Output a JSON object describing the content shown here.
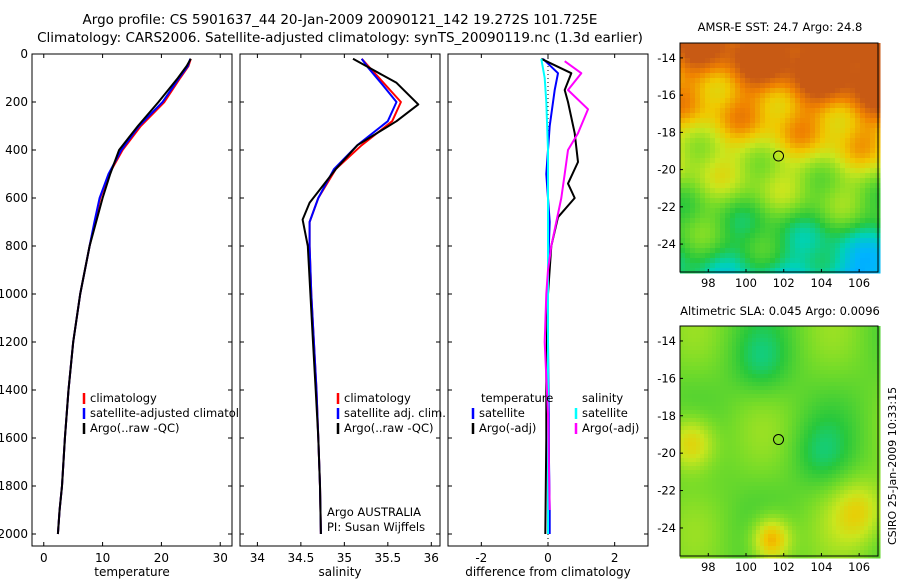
{
  "titles": {
    "line1": "Argo profile: CS 5901637_44 20-Jan-2009 20090121_142 19.272S 101.725E",
    "line2": "Climatology: CARS2006. Satellite-adjusted climatology: synTS_20090119.nc (1.3d earlier)"
  },
  "colors": {
    "climatology": "#ff0000",
    "satellite": "#0000ff",
    "argo": "#000000",
    "temp_satellite": "#0000ff",
    "sal_satellite": "#00ffff",
    "sal_argo": "#ff00ff"
  },
  "chart_data": [
    {
      "type": "line",
      "id": "temperature",
      "xlabel": "temperature",
      "ylabel": "",
      "xlim": [
        -2,
        32
      ],
      "ylim": [
        2050,
        0
      ],
      "xticks": [
        0,
        10,
        20,
        30
      ],
      "yticks": [
        0,
        200,
        400,
        600,
        800,
        1000,
        1200,
        1400,
        1600,
        1800,
        2000
      ],
      "ytick_labels": [
        "0",
        "200",
        "400",
        "600",
        "800",
        "1000",
        "1200",
        "1400",
        "1600",
        "1800",
        "2000"
      ],
      "legend": {
        "placement": "lower-right",
        "entries": [
          "climatology",
          "satellite-adjusted climatology",
          "Argo(..raw -QC)"
        ]
      },
      "series": [
        {
          "name": "climatology",
          "color_key": "climatology",
          "x": [
            25,
            24.6,
            23.2,
            20.5,
            16.5,
            13.4,
            11.1,
            9.6,
            8.7,
            7.8,
            6.2,
            5.0,
            4.2,
            3.6,
            3.1,
            2.7,
            2.4
          ],
          "y": [
            20,
            50,
            100,
            200,
            300,
            400,
            500,
            600,
            700,
            800,
            1000,
            1200,
            1400,
            1600,
            1800,
            1900,
            2000
          ]
        },
        {
          "name": "satellite-adjusted climatology",
          "color_key": "satellite",
          "x": [
            24.9,
            24.5,
            23.0,
            20.2,
            16.2,
            13.2,
            11.0,
            9.5,
            8.6,
            7.8,
            6.2,
            5.0,
            4.2,
            3.6,
            3.1,
            2.7,
            2.4
          ],
          "y": [
            20,
            50,
            100,
            200,
            300,
            400,
            500,
            600,
            700,
            800,
            1000,
            1200,
            1400,
            1600,
            1800,
            1900,
            2000
          ]
        },
        {
          "name": "Argo(..raw -QC)",
          "color_key": "argo",
          "x": [
            25,
            24.3,
            22.8,
            19.5,
            16.0,
            12.8,
            11.3,
            10.0,
            8.9,
            7.8,
            6.2,
            5.0,
            4.2,
            3.6,
            3.1,
            2.7,
            2.4
          ],
          "y": [
            20,
            50,
            100,
            200,
            300,
            400,
            500,
            600,
            700,
            800,
            1000,
            1200,
            1400,
            1600,
            1800,
            1900,
            2000
          ]
        }
      ]
    },
    {
      "type": "line",
      "id": "salinity",
      "xlabel": "salinity",
      "ylabel": "",
      "xlim": [
        33.8,
        36.1
      ],
      "ylim": [
        2050,
        0
      ],
      "xticks": [
        34,
        34.5,
        35,
        35.5,
        36
      ],
      "xtick_labels": [
        "34",
        "34.5",
        "35",
        "35.5",
        "36"
      ],
      "legend": {
        "placement": "lower-right",
        "entries": [
          "climatology",
          "satellite adj. clim.",
          "Argo(..raw -QC)"
        ]
      },
      "annotation": {
        "line1": "Argo AUSTRALIA",
        "line2": "PI: Susan Wijffels"
      },
      "series": [
        {
          "name": "climatology",
          "color_key": "climatology",
          "x": [
            35.2,
            35.3,
            35.45,
            35.65,
            35.55,
            35.2,
            34.9,
            34.7,
            34.6,
            34.6,
            34.62,
            34.65,
            34.68,
            34.7,
            34.72,
            34.73
          ],
          "y": [
            20,
            60,
            120,
            200,
            280,
            380,
            480,
            600,
            700,
            800,
            1000,
            1200,
            1400,
            1600,
            1800,
            2000
          ]
        },
        {
          "name": "satellite adj. clim.",
          "color_key": "satellite",
          "x": [
            35.2,
            35.28,
            35.42,
            35.6,
            35.5,
            35.15,
            34.88,
            34.7,
            34.6,
            34.6,
            34.62,
            34.65,
            34.68,
            34.7,
            34.72,
            34.73
          ],
          "y": [
            20,
            60,
            120,
            200,
            280,
            380,
            480,
            600,
            700,
            800,
            1000,
            1200,
            1400,
            1600,
            1800,
            2000
          ]
        },
        {
          "name": "Argo(..raw -QC)",
          "color_key": "argo",
          "x": [
            35.1,
            35.3,
            35.6,
            35.85,
            35.6,
            35.15,
            34.9,
            34.6,
            34.52,
            34.58,
            34.61,
            34.64,
            34.67,
            34.7,
            34.72,
            34.73
          ],
          "y": [
            20,
            60,
            120,
            210,
            280,
            380,
            480,
            620,
            690,
            800,
            1000,
            1200,
            1400,
            1600,
            1800,
            2000
          ]
        }
      ]
    },
    {
      "type": "line",
      "id": "difference",
      "xlabel": "difference from climatology",
      "ylabel": "",
      "xlim": [
        -3,
        3
      ],
      "ylim": [
        2050,
        0
      ],
      "xticks": [
        -2,
        0,
        2
      ],
      "xtick_labels": [
        "-2",
        "0",
        "2"
      ],
      "legend": {
        "placement": "lower-center",
        "temperature_header": "temperature",
        "temperature_entries": [
          "satellite",
          "Argo(-adj)"
        ],
        "salinity_header": "salinity",
        "salinity_entries": [
          "satellite",
          "Argo(-adj)"
        ]
      },
      "series": [
        {
          "name": "temperature satellite",
          "color_key": "temp_satellite",
          "x": [
            -0.15,
            0.3,
            0.2,
            0.05,
            -0.05,
            0.05,
            0.0,
            0.0,
            0.02,
            0.03,
            0.05,
            0.05
          ],
          "y": [
            20,
            80,
            150,
            300,
            500,
            700,
            900,
            1200,
            1500,
            1700,
            1900,
            2000
          ]
        },
        {
          "name": "temperature Argo(-adj)",
          "color_key": "argo",
          "x": [
            -0.2,
            0.7,
            0.5,
            0.6,
            0.8,
            0.9,
            0.6,
            0.8,
            0.3,
            0.1,
            0.0,
            -0.05,
            -0.05,
            -0.08
          ],
          "y": [
            20,
            80,
            150,
            200,
            330,
            450,
            540,
            600,
            680,
            800,
            1000,
            1300,
            1600,
            2000
          ]
        },
        {
          "name": "salinity satellite",
          "color_key": "sal_satellite",
          "x": [
            -0.2,
            -0.1,
            -0.05,
            0.0,
            0.0,
            0.0,
            0.0,
            0.0,
            0.0,
            0.0
          ],
          "y": [
            20,
            100,
            200,
            400,
            600,
            800,
            1000,
            1400,
            1800,
            2000
          ]
        },
        {
          "name": "salinity Argo(-adj)",
          "color_key": "sal_argo",
          "x": [
            0.5,
            1.0,
            0.6,
            1.2,
            0.9,
            0.6,
            0.5,
            0.4,
            0.1,
            0.0,
            -0.05,
            -0.1,
            0.0,
            0.05
          ],
          "y": [
            30,
            80,
            150,
            230,
            330,
            400,
            500,
            600,
            800,
            900,
            1000,
            1200,
            1500,
            1900
          ]
        }
      ]
    },
    {
      "type": "heatmap",
      "id": "sst-map",
      "title": "AMSR-E SST: 24.7 Argo: 24.8",
      "xlim": [
        96.5,
        107
      ],
      "ylim": [
        -25.5,
        -13.2
      ],
      "xticks": [
        98,
        100,
        102,
        104,
        106
      ],
      "yticks": [
        -14,
        -16,
        -18,
        -20,
        -22,
        -24
      ],
      "marker": {
        "lon": 101.725,
        "lat": -19.272
      }
    },
    {
      "type": "heatmap",
      "id": "sla-map",
      "title": "Altimetric SLA: 0.045 Argo: 0.0096",
      "xlim": [
        96.5,
        107
      ],
      "ylim": [
        -25.5,
        -13.2
      ],
      "xticks": [
        98,
        100,
        102,
        104,
        106
      ],
      "yticks": [
        -14,
        -16,
        -18,
        -20,
        -22,
        -24
      ],
      "marker": {
        "lon": 101.725,
        "lat": -19.272
      }
    }
  ],
  "side_label": "CSIRO 25-Jan-2009 10:33:15"
}
